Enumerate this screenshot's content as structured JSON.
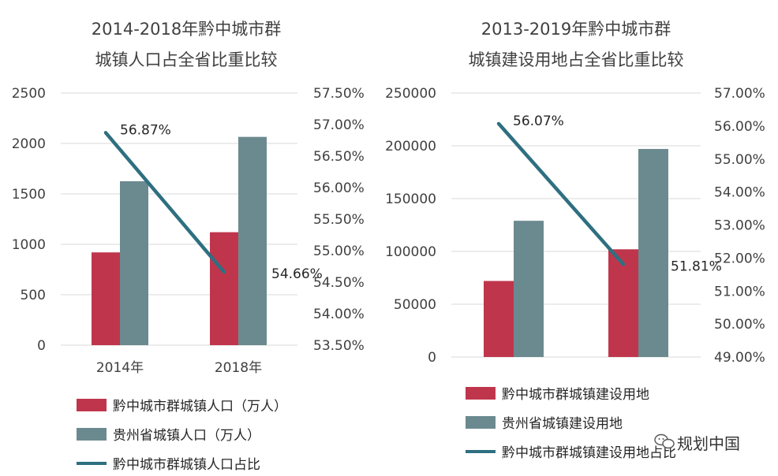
{
  "colors": {
    "bar_primary": "#bf364c",
    "bar_secondary": "#6b8a90",
    "line": "#2e6f80",
    "grid": "#d9d9d9",
    "text": "#404040"
  },
  "chart_data": [
    {
      "type": "bar",
      "title": "2014-2018年黔中城市群",
      "subtitle": "城镇人口占全省比重比较",
      "categories": [
        "2014年",
        "2018年"
      ],
      "series": [
        {
          "name": "黔中城市群城镇人口（万人）",
          "axis": "left",
          "values": [
            920,
            1120
          ]
        },
        {
          "name": "贵州省城镇人口（万人）",
          "axis": "left",
          "values": [
            1625,
            2065
          ]
        }
      ],
      "line_series": {
        "name": "黔中城市群城镇人口占比",
        "axis": "right",
        "values": [
          56.87,
          54.66
        ],
        "labels": [
          "56.87%",
          "54.66%"
        ]
      },
      "y_left": {
        "min": 0,
        "max": 2500,
        "ticks": [
          "0",
          "500",
          "1000",
          "1500",
          "2000",
          "2500"
        ]
      },
      "y_right": {
        "min": 53.5,
        "max": 57.5,
        "ticks": [
          "53.50%",
          "54.00%",
          "54.50%",
          "55.00%",
          "55.50%",
          "56.00%",
          "56.50%",
          "57.00%",
          "57.50%"
        ]
      },
      "grid": true,
      "legend": "bottom"
    },
    {
      "type": "bar",
      "title": "2013-2019年黔中城市群",
      "subtitle": "城镇建设用地占全省比重比较",
      "categories": [
        "",
        ""
      ],
      "series": [
        {
          "name": "黔中城市群城镇建设用地",
          "axis": "left",
          "values": [
            72000,
            102000
          ]
        },
        {
          "name": "贵州省城镇建设用地",
          "axis": "left",
          "values": [
            129000,
            197000
          ]
        }
      ],
      "line_series": {
        "name": "黔中城市群城镇建设用地占比",
        "axis": "right",
        "values": [
          56.07,
          51.81
        ],
        "labels": [
          "56.07%",
          "51.81%"
        ]
      },
      "y_left": {
        "min": 0,
        "max": 250000,
        "ticks": [
          "0",
          "50000",
          "100000",
          "150000",
          "200000",
          "250000"
        ]
      },
      "y_right": {
        "min": 49,
        "max": 57,
        "ticks": [
          "49.00%",
          "50.00%",
          "51.00%",
          "52.00%",
          "53.00%",
          "54.00%",
          "55.00%",
          "56.00%",
          "57.00%"
        ]
      },
      "grid": true,
      "legend": "bottom"
    }
  ],
  "watermark": {
    "icon": "wechat-icon",
    "text": "规划中国"
  }
}
